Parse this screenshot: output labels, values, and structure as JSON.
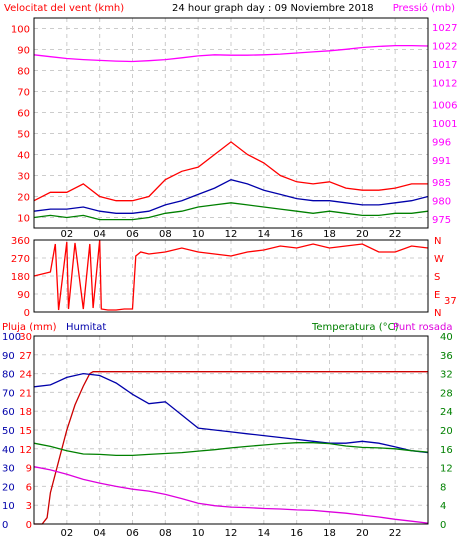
{
  "chart_data": [
    {
      "type": "line",
      "title": "24 hour graph day : 09 Noviembre 2018",
      "left_axis_label": "Velocitat del vent (kmh)",
      "right_axis_label": "Pressió (mb)",
      "x_ticks": [
        "02",
        "04",
        "06",
        "08",
        "10",
        "12",
        "14",
        "16",
        "18",
        "20",
        "22"
      ],
      "x_range_hours": [
        0,
        24
      ],
      "y_left_ticks": [
        10,
        20,
        30,
        40,
        50,
        60,
        70,
        80,
        90,
        100
      ],
      "y_left_range": [
        5,
        105
      ],
      "y_right_ticks": [
        975,
        980,
        985,
        991,
        996,
        1001,
        1006,
        1012,
        1017,
        1022,
        1027
      ],
      "y_right_range": [
        972.5,
        1029.5
      ],
      "grid": true,
      "series": [
        {
          "color": "#ff00ff",
          "axis": "right",
          "x": [
            0,
            1,
            2,
            3,
            4,
            5,
            6,
            7,
            8,
            9,
            10,
            11,
            12,
            13,
            14,
            15,
            16,
            17,
            18,
            19,
            20,
            21,
            22,
            23,
            24
          ],
          "values": [
            1019.5,
            1019.0,
            1018.5,
            1018.2,
            1018.0,
            1017.8,
            1017.7,
            1017.9,
            1018.2,
            1018.7,
            1019.2,
            1019.5,
            1019.4,
            1019.4,
            1019.5,
            1019.7,
            1020.0,
            1020.3,
            1020.6,
            1021.0,
            1021.5,
            1021.8,
            1022.0,
            1022.0,
            1021.9
          ]
        },
        {
          "color": "#ff0000",
          "axis": "left",
          "x": [
            0,
            1,
            2,
            3,
            4,
            5,
            6,
            7,
            8,
            9,
            10,
            11,
            12,
            13,
            14,
            15,
            16,
            17,
            18,
            19,
            20,
            21,
            22,
            23,
            24
          ],
          "values": [
            18,
            22,
            22,
            26,
            20,
            18,
            18,
            20,
            28,
            32,
            34,
            40,
            46,
            40,
            36,
            30,
            27,
            26,
            27,
            24,
            23,
            23,
            24,
            26,
            26
          ]
        },
        {
          "color": "#0000aa",
          "axis": "left",
          "x": [
            0,
            1,
            2,
            3,
            4,
            5,
            6,
            7,
            8,
            9,
            10,
            11,
            12,
            13,
            14,
            15,
            16,
            17,
            18,
            19,
            20,
            21,
            22,
            23,
            24
          ],
          "values": [
            13,
            14,
            14,
            15,
            13,
            12,
            12,
            13,
            16,
            18,
            21,
            24,
            28,
            26,
            23,
            21,
            19,
            18,
            18,
            17,
            16,
            16,
            17,
            18,
            20
          ]
        },
        {
          "color": "#008000",
          "axis": "left",
          "x": [
            0,
            1,
            2,
            3,
            4,
            5,
            6,
            7,
            8,
            9,
            10,
            11,
            12,
            13,
            14,
            15,
            16,
            17,
            18,
            19,
            20,
            21,
            22,
            23,
            24
          ],
          "values": [
            10,
            11,
            10,
            11,
            9,
            9,
            9,
            10,
            12,
            13,
            15,
            16,
            17,
            16,
            15,
            14,
            13,
            12,
            13,
            12,
            11,
            11,
            12,
            12,
            13
          ]
        }
      ]
    },
    {
      "type": "line",
      "title": "",
      "x_ticks": [
        "02",
        "04",
        "06",
        "08",
        "10",
        "12",
        "14",
        "16",
        "18",
        "20",
        "22"
      ],
      "x_range_hours": [
        0,
        24
      ],
      "y_left_ticks": [
        0,
        90,
        180,
        270,
        360
      ],
      "y_left_range": [
        0,
        360
      ],
      "y_right_ticks": [
        "N",
        "W",
        "S",
        "E",
        "N"
      ],
      "current_value_label": "37",
      "grid": true,
      "series": [
        {
          "color": "#ff0000",
          "axis": "left",
          "x": [
            0,
            1,
            1.3,
            1.5,
            2,
            2.1,
            2.5,
            3,
            3.4,
            3.6,
            4,
            4.1,
            4.5,
            5,
            5.5,
            6,
            6.2,
            6.5,
            7,
            8,
            9,
            10,
            11,
            12,
            13,
            14,
            15,
            16,
            17,
            18,
            19,
            20,
            21,
            22,
            23,
            24
          ],
          "values": [
            180,
            200,
            340,
            10,
            350,
            15,
            345,
            15,
            340,
            20,
            360,
            15,
            10,
            10,
            15,
            15,
            280,
            300,
            290,
            300,
            320,
            300,
            290,
            280,
            300,
            310,
            330,
            320,
            340,
            320,
            330,
            340,
            300,
            300,
            330,
            320
          ]
        }
      ]
    },
    {
      "type": "line",
      "title": "",
      "left_axis_label_1": "Pluja (mm)",
      "left_axis_label_2": "Humitat",
      "right_axis_label_1": "Temperatura (°C)",
      "right_axis_label_2": "Punt rosada",
      "x_ticks": [
        "02",
        "04",
        "06",
        "08",
        "10",
        "12",
        "14",
        "16",
        "18",
        "20",
        "22"
      ],
      "x_range_hours": [
        0,
        24
      ],
      "y_rain_ticks": [
        0,
        3,
        6,
        9,
        12,
        15,
        18,
        21,
        24,
        27,
        30
      ],
      "y_rain_range": [
        0,
        30
      ],
      "y_hum_ticks": [
        0,
        10,
        20,
        30,
        40,
        50,
        60,
        70,
        80,
        90,
        100
      ],
      "y_hum_range": [
        0,
        100
      ],
      "y_temp_ticks": [
        0,
        4,
        8,
        12,
        16,
        20,
        24,
        28,
        32,
        36,
        40
      ],
      "y_temp_range": [
        0,
        40
      ],
      "grid": true,
      "series": [
        {
          "color": "#cc0000",
          "axis": "rain",
          "x": [
            0,
            0.5,
            0.8,
            1,
            1.5,
            2,
            2.5,
            3,
            3.4,
            3.6,
            24
          ],
          "values": [
            0,
            0,
            1,
            5,
            10,
            15,
            19,
            22,
            24,
            24.3,
            24.3
          ]
        },
        {
          "color": "#0000aa",
          "axis": "hum",
          "x": [
            0,
            1,
            2,
            3,
            4,
            5,
            6,
            7,
            8,
            9,
            10,
            11,
            12,
            13,
            14,
            15,
            16,
            17,
            18,
            19,
            20,
            21,
            22,
            23,
            24
          ],
          "values": [
            73,
            74,
            78,
            80,
            79,
            75,
            69,
            64,
            65,
            58,
            51,
            50,
            49,
            48,
            47,
            46,
            45,
            44,
            43,
            43,
            44,
            43,
            41,
            39,
            38
          ]
        },
        {
          "color": "#008000",
          "axis": "temp",
          "x": [
            0,
            1,
            2,
            3,
            4,
            5,
            6,
            7,
            8,
            9,
            10,
            11,
            12,
            13,
            14,
            15,
            16,
            17,
            18,
            19,
            20,
            21,
            22,
            23,
            24
          ],
          "values": [
            17.2,
            16.5,
            15.6,
            14.9,
            14.8,
            14.6,
            14.6,
            14.8,
            15.0,
            15.2,
            15.5,
            15.8,
            16.2,
            16.5,
            16.8,
            17.1,
            17.3,
            17.3,
            17.1,
            16.6,
            16.3,
            16.2,
            16.0,
            15.6,
            15.3
          ]
        },
        {
          "color": "#dd00dd",
          "axis": "temp",
          "x": [
            0,
            1,
            2,
            3,
            4,
            5,
            6,
            7,
            8,
            9,
            10,
            11,
            12,
            13,
            14,
            15,
            16,
            17,
            18,
            19,
            20,
            21,
            22,
            23,
            24
          ],
          "values": [
            12.2,
            11.5,
            10.6,
            9.5,
            8.7,
            8.0,
            7.4,
            7.0,
            6.3,
            5.4,
            4.4,
            3.9,
            3.6,
            3.5,
            3.3,
            3.2,
            3.0,
            2.9,
            2.6,
            2.3,
            1.9,
            1.5,
            1.0,
            0.6,
            0.2
          ]
        }
      ]
    }
  ]
}
